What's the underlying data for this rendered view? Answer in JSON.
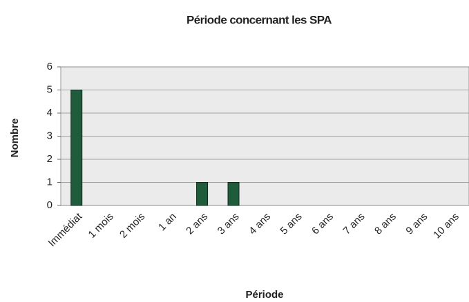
{
  "chart_data": {
    "type": "bar",
    "title": "Période concernant les SPA",
    "x_label": "Période",
    "y_label": "Nombre",
    "categories": [
      "Immédiat",
      "1 mois",
      "2 mois",
      "1 an",
      "2 ans",
      "3 ans",
      "4 ans",
      "5 ans",
      "6 ans",
      "7 ans",
      "8 ans",
      "9 ans",
      "10 ans"
    ],
    "values": [
      5,
      0,
      0,
      0,
      1,
      1,
      0,
      0,
      0,
      0,
      0,
      0,
      0
    ],
    "color": "#1f5c3c",
    "ylim": [
      0,
      6
    ],
    "yticks": [
      0,
      1,
      2,
      3,
      4,
      5,
      6
    ],
    "grid": true
  }
}
